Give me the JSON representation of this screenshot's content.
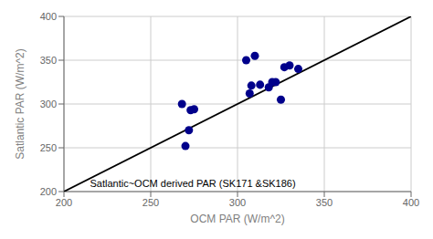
{
  "chart_data": {
    "type": "scatter",
    "xlabel": "OCM PAR (W/m^2)",
    "ylabel": "Satlantic PAR (W/m^2)",
    "xlim": [
      200,
      400
    ],
    "ylim": [
      200,
      400
    ],
    "xticks": [
      200,
      250,
      300,
      350,
      400
    ],
    "yticks": [
      200,
      250,
      300,
      350,
      400
    ],
    "grid": true,
    "series": [
      {
        "type": "line",
        "color": "#000000",
        "x": [
          200,
          400
        ],
        "values": [
          200,
          400
        ]
      },
      {
        "type": "scatter",
        "color": "#00008B",
        "x": [
          268,
          270,
          272,
          273,
          275,
          305,
          307,
          308,
          310,
          313,
          318,
          320,
          322,
          325,
          327,
          330,
          335
        ],
        "values": [
          300,
          252,
          270,
          293,
          294,
          350,
          312,
          321,
          355,
          322,
          319,
          325,
          325,
          305,
          342,
          344,
          340
        ]
      }
    ],
    "annotations": [
      {
        "text": "Satlantic~OCM derived PAR (SK171 &SK186)",
        "x": 215,
        "y": 205
      }
    ]
  }
}
